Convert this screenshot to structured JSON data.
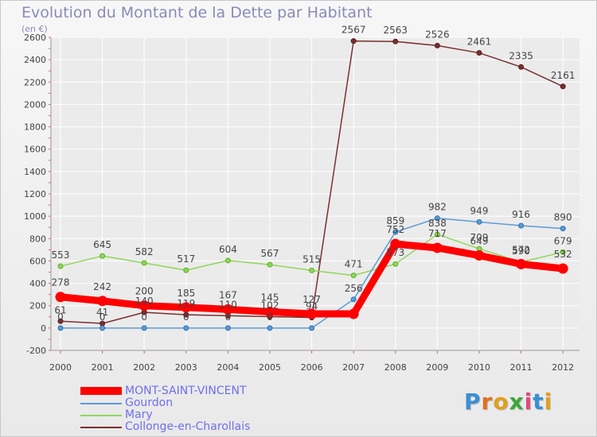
{
  "chart_data": {
    "type": "line",
    "title": "Evolution du Montant de la Dette par Habitant",
    "subtitle": "(en €)",
    "xlabel": "",
    "ylabel": "(en €)",
    "ylim": [
      -200,
      2600
    ],
    "yticks": [
      -200,
      0,
      200,
      400,
      600,
      800,
      1000,
      1200,
      1400,
      1600,
      1800,
      2000,
      2200,
      2400,
      2600
    ],
    "grid": true,
    "legend": "bottom-left",
    "categories": [
      "2000",
      "2001",
      "2002",
      "2003",
      "2004",
      "2005",
      "2006",
      "2007",
      "2008",
      "2009",
      "2010",
      "2011",
      "2012"
    ],
    "series": [
      {
        "name": "MONT-SAINT-VINCENT",
        "color": "#ff0000",
        "values": [
          278,
          242,
          200,
          185,
          167,
          145,
          127,
          127,
          752,
          717,
          649,
          572,
          532
        ],
        "labels": [
          "278",
          "242",
          "200",
          "185",
          "167",
          "145",
          "127",
          "",
          "752",
          "717",
          "649",
          "572",
          "532"
        ]
      },
      {
        "name": "Gourdon",
        "color": "#5b9bd5",
        "values": [
          0,
          0,
          0,
          0,
          0,
          0,
          0,
          256,
          859,
          982,
          949,
          916,
          890
        ],
        "labels": [
          "0",
          "0",
          "0",
          "0",
          "0",
          "0",
          "",
          "256",
          "859",
          "982",
          "949",
          "916",
          "890"
        ]
      },
      {
        "name": "Mary",
        "color": "#90d65a",
        "values": [
          553,
          645,
          582,
          517,
          604,
          567,
          515,
          471,
          573,
          838,
          709,
          590,
          679
        ],
        "labels": [
          "553",
          "645",
          "582",
          "517",
          "604",
          "567",
          "515",
          "471",
          "573",
          "838",
          "709",
          "590",
          "679"
        ]
      },
      {
        "name": "Collonge-en-Charollais",
        "color": "#7b2f2f",
        "values": [
          61,
          41,
          140,
          119,
          110,
          102,
          94,
          2567,
          2563,
          2526,
          2461,
          2335,
          2161
        ],
        "labels": [
          "61",
          "41",
          "140",
          "119",
          "110",
          "102",
          "94",
          "2567",
          "2563",
          "2526",
          "2461",
          "2335",
          "2161"
        ]
      }
    ]
  },
  "legend_items": [
    "MONT-SAINT-VINCENT",
    "Gourdon",
    "Mary",
    "Collonge-en-Charollais"
  ],
  "logo": {
    "text": "Proxiti"
  }
}
